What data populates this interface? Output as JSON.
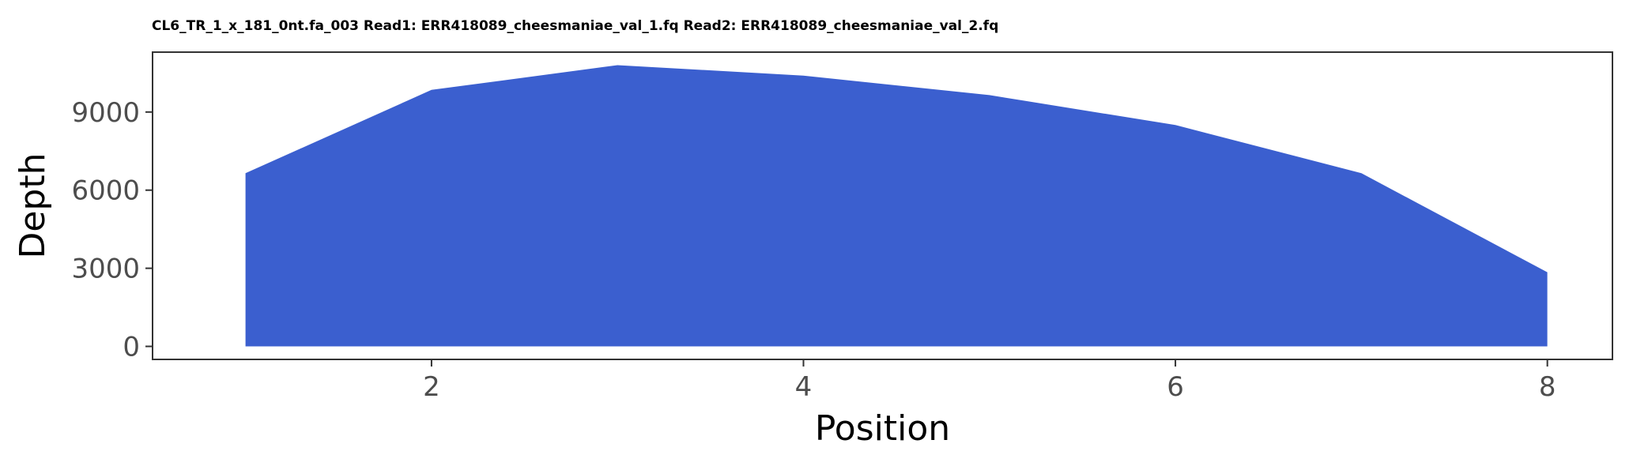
{
  "chart_data": {
    "type": "area",
    "title": "CL6_TR_1_x_181_0nt.fa_003 Read1: ERR418089_cheesmaniae_val_1.fq Read2: ERR418089_cheesmaniae_val_2.fq",
    "xlabel": "Position",
    "ylabel": "Depth",
    "x": [
      1,
      2,
      3,
      4,
      5,
      6,
      7,
      8
    ],
    "y": [
      6650,
      9850,
      10800,
      10400,
      9650,
      8500,
      6650,
      2850
    ],
    "xlim": [
      0.5,
      8.35
    ],
    "ylim": [
      -500,
      11300
    ],
    "xticks": [
      2,
      4,
      6,
      8
    ],
    "yticks": [
      0,
      3000,
      6000,
      9000
    ],
    "xtick_labels": [
      "2",
      "4",
      "6",
      "8"
    ],
    "ytick_labels": [
      "0",
      "3000",
      "6000",
      "9000"
    ],
    "fill_color": "#3b5fcf",
    "grid": false,
    "legend": "none"
  }
}
